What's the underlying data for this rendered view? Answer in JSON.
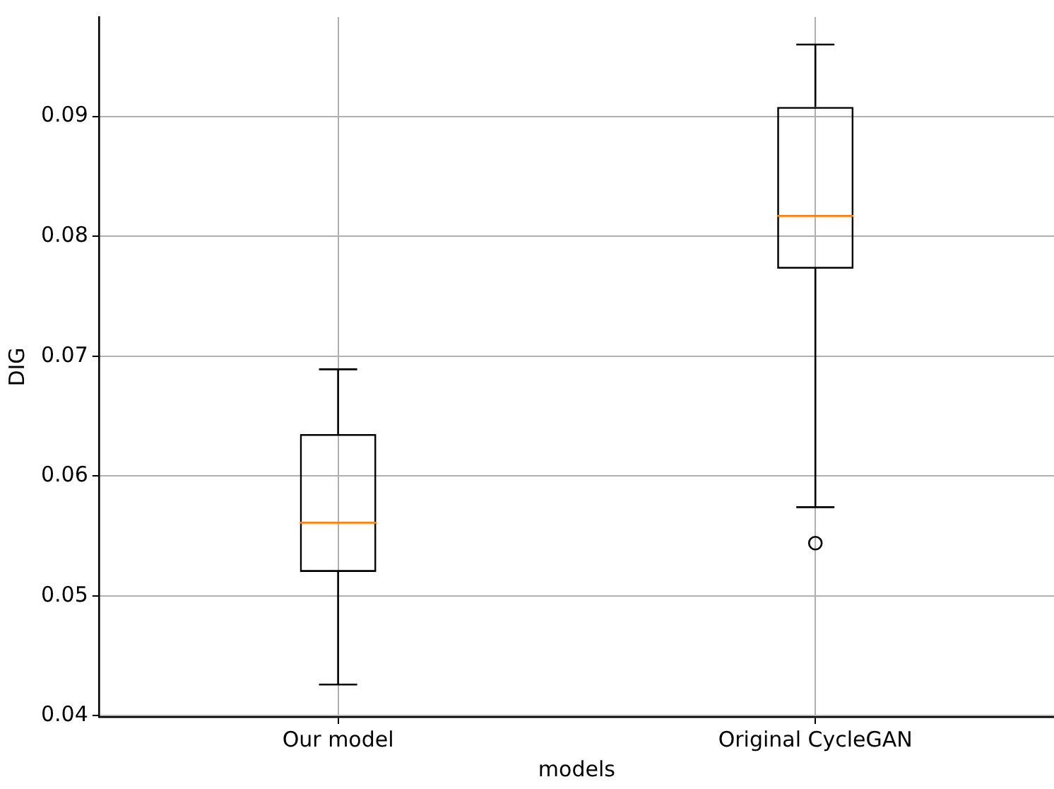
{
  "chart_data": {
    "type": "box",
    "xlabel": "models",
    "ylabel": "DIG",
    "categories": [
      "Our model",
      "Original CycleGAN"
    ],
    "boxes": [
      {
        "low": 0.0426,
        "q1": 0.052,
        "median": 0.0561,
        "q3": 0.0635,
        "high": 0.0689
      },
      {
        "low": 0.0574,
        "q1": 0.0773,
        "median": 0.0817,
        "q3": 0.0908,
        "high": 0.096,
        "outliers": [
          0.0544
        ]
      }
    ],
    "ylim": [
      0.0399,
      0.0983
    ],
    "yticks": [
      0.04,
      0.05,
      0.06,
      0.07,
      0.08,
      0.09
    ],
    "grid": true
  }
}
